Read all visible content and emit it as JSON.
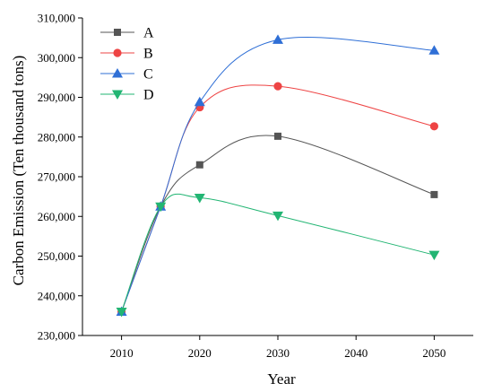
{
  "chart_data": {
    "type": "line",
    "title": "",
    "xlabel": "Year",
    "ylabel": "Carbon Emission (Ten thousand tons)",
    "x": [
      2010,
      2015,
      2020,
      2030,
      2050
    ],
    "x_tick_labels": [
      "2010",
      "2020",
      "2030",
      "2040",
      "2050"
    ],
    "y_tick_labels": [
      "230,000",
      "240,000",
      "250,000",
      "260,000",
      "270,000",
      "280,000",
      "290,000",
      "300,000",
      "310,000"
    ],
    "ylim": [
      230000,
      310000
    ],
    "grid": false,
    "legend_position": "top-left",
    "smooth": true,
    "series": [
      {
        "name": "A",
        "marker": "square",
        "color": "#555555",
        "values": [
          236000,
          262500,
          273000,
          280200,
          265500
        ]
      },
      {
        "name": "B",
        "marker": "circle",
        "color": "#ee4444",
        "values": [
          236000,
          262500,
          287500,
          292800,
          282700
        ]
      },
      {
        "name": "C",
        "marker": "triangle-up",
        "color": "#2f6fd6",
        "values": [
          236000,
          262500,
          288800,
          304500,
          301800
        ]
      },
      {
        "name": "D",
        "marker": "triangle-down",
        "color": "#22b573",
        "values": [
          236000,
          262500,
          264700,
          260200,
          250300
        ]
      }
    ]
  }
}
